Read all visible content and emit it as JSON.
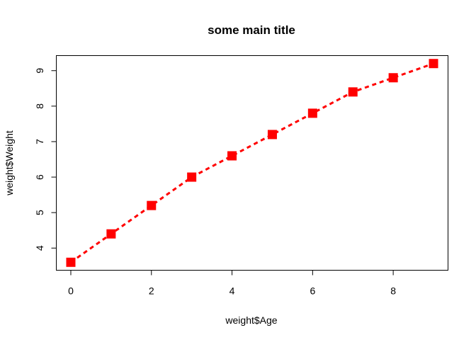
{
  "chart_data": {
    "type": "line",
    "title": "some main title",
    "xlabel": "weight$Age",
    "ylabel": "weight$Weight",
    "x": [
      0,
      1,
      2,
      3,
      4,
      5,
      6,
      7,
      8,
      9
    ],
    "series": [
      {
        "values": [
          3.6,
          4.4,
          5.2,
          6.0,
          6.6,
          7.2,
          7.8,
          8.4,
          8.8,
          9.2
        ],
        "color": "#ff0000",
        "line_style": "dashed",
        "marker": "square"
      }
    ],
    "xlim": [
      -0.36,
      9.36
    ],
    "ylim": [
      3.376,
      9.424
    ],
    "xticks": [
      0,
      2,
      4,
      6,
      8
    ],
    "yticks": [
      4,
      5,
      6,
      7,
      8,
      9
    ],
    "grid": false,
    "legend": "none"
  }
}
